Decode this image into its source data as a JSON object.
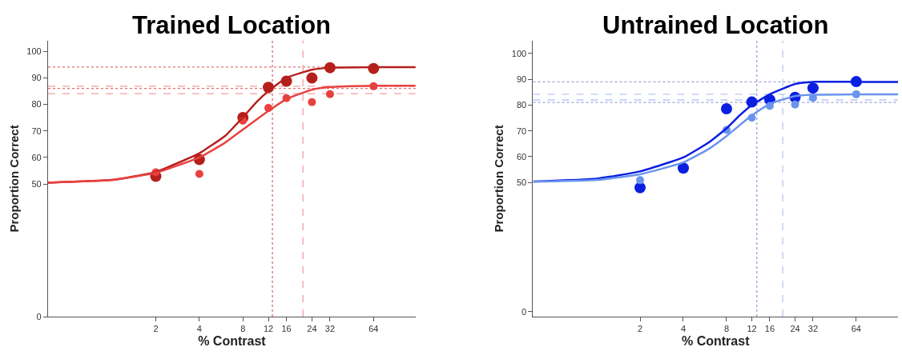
{
  "chart_data": [
    {
      "type": "scatter",
      "title": "Trained Location",
      "xlabel": "% Contrast",
      "ylabel": "Proportion Correct",
      "log": "x",
      "marker": "circle",
      "xlim": [
        0.36,
        125
      ],
      "xticks": [
        2,
        4,
        8,
        12,
        16,
        24,
        32,
        64
      ],
      "ylim": [
        0,
        104
      ],
      "yticks": [
        0,
        50,
        60,
        70,
        80,
        90,
        100
      ],
      "series": [
        {
          "color": "#b5201c",
          "x": [
            2,
            4,
            8,
            12,
            16,
            24,
            32,
            64
          ],
          "values": [
            52.9,
            59.2,
            75.0,
            86.4,
            88.7,
            89.9,
            93.8,
            93.5
          ]
        },
        {
          "color": "#e8413f",
          "x": [
            2,
            4,
            8,
            12,
            16,
            24,
            32,
            64
          ],
          "values": [
            54.4,
            53.8,
            73.8,
            78.6,
            82.3,
            80.8,
            83.8,
            86.8
          ]
        },
        {
          "type": "line",
          "marker": "none",
          "color": "#b5201c",
          "x": [
            0.36,
            1,
            2,
            4,
            6,
            8,
            10,
            12,
            16,
            24,
            32,
            64,
            125
          ],
          "values": [
            50.5,
            51.5,
            54.5,
            61.6,
            68,
            75.1,
            81,
            85,
            90,
            93,
            93.8,
            94,
            94
          ]
        },
        {
          "type": "line",
          "marker": "none",
          "color": "#e8413f",
          "x": [
            0.36,
            1,
            2,
            4,
            6,
            8,
            12,
            16,
            24,
            32,
            64,
            125
          ],
          "values": [
            50.5,
            51.5,
            54.2,
            60,
            65.5,
            70.5,
            77.5,
            82,
            85.5,
            86.5,
            87,
            87
          ]
        }
      ],
      "ref_lines": [
        {
          "axis": "y",
          "value": 94,
          "color": "#e07070",
          "line_style": "dotted"
        },
        {
          "axis": "y",
          "value": 86.8,
          "color": "#f0a0a0",
          "line_style": "dashed"
        },
        {
          "axis": "y",
          "value": 86,
          "color": "#e07070",
          "line_style": "dotted"
        },
        {
          "axis": "y",
          "value": 84,
          "color": "#f0a0a0",
          "line_style": "dashed"
        },
        {
          "axis": "x",
          "value": 12.8,
          "color": "#e07070",
          "line_style": "dotted"
        },
        {
          "axis": "x",
          "value": 20.8,
          "color": "#f0a0a0",
          "line_style": "dashed"
        }
      ]
    },
    {
      "type": "scatter",
      "title": "Untrained Location",
      "xlabel": "% Contrast",
      "ylabel": "Proportion Correct",
      "log": "x",
      "marker": "circle",
      "xlim": [
        0.36,
        125
      ],
      "xticks": [
        2,
        4,
        8,
        12,
        16,
        24,
        32,
        64
      ],
      "ylim": [
        -2,
        105
      ],
      "yticks": [
        0,
        50,
        60,
        70,
        80,
        90,
        100
      ],
      "series": [
        {
          "color": "#0a1fe0",
          "x": [
            2,
            4,
            8,
            12,
            16,
            24,
            32,
            64
          ],
          "values": [
            48.0,
            55.6,
            78.6,
            81.2,
            82.1,
            83.0,
            86.6,
            89.1
          ]
        },
        {
          "color": "#6a94ee",
          "x": [
            2,
            4,
            8,
            12,
            16,
            24,
            32,
            64
          ],
          "values": [
            50.9,
            null,
            70.4,
            75.1,
            79.7,
            80.2,
            82.8,
            84.2
          ]
        },
        {
          "type": "line",
          "marker": "none",
          "color": "#0a1fe0",
          "x": [
            0.36,
            1,
            2,
            4,
            6,
            8,
            10,
            12,
            16,
            24,
            32,
            64,
            125
          ],
          "values": [
            50.4,
            51.5,
            54.3,
            59.7,
            65.5,
            71,
            76.3,
            80,
            84.2,
            88.2,
            89,
            89,
            89
          ]
        },
        {
          "type": "line",
          "marker": "none",
          "color": "#6a94ee",
          "x": [
            0.36,
            1,
            2,
            4,
            6,
            8,
            12,
            16,
            24,
            32,
            64,
            125
          ],
          "values": [
            50.3,
            51,
            53.2,
            57.8,
            63,
            68,
            76,
            80.5,
            83.5,
            84,
            84.2,
            84.2
          ]
        }
      ],
      "ref_lines": [
        {
          "axis": "y",
          "value": 89,
          "color": "#9aa0e0",
          "line_style": "dotted"
        },
        {
          "axis": "y",
          "value": 84.2,
          "color": "#b8c8f0",
          "line_style": "dashed"
        },
        {
          "axis": "y",
          "value": 82,
          "color": "#b8c8f0",
          "line_style": "dashed"
        },
        {
          "axis": "y",
          "value": 81,
          "color": "#9aa0e0",
          "line_style": "dotted"
        },
        {
          "axis": "x",
          "value": 13.0,
          "color": "#9aa0e0",
          "line_style": "dotted"
        },
        {
          "axis": "x",
          "value": 19.7,
          "color": "#b8c8f0",
          "line_style": "dashed"
        }
      ]
    }
  ]
}
